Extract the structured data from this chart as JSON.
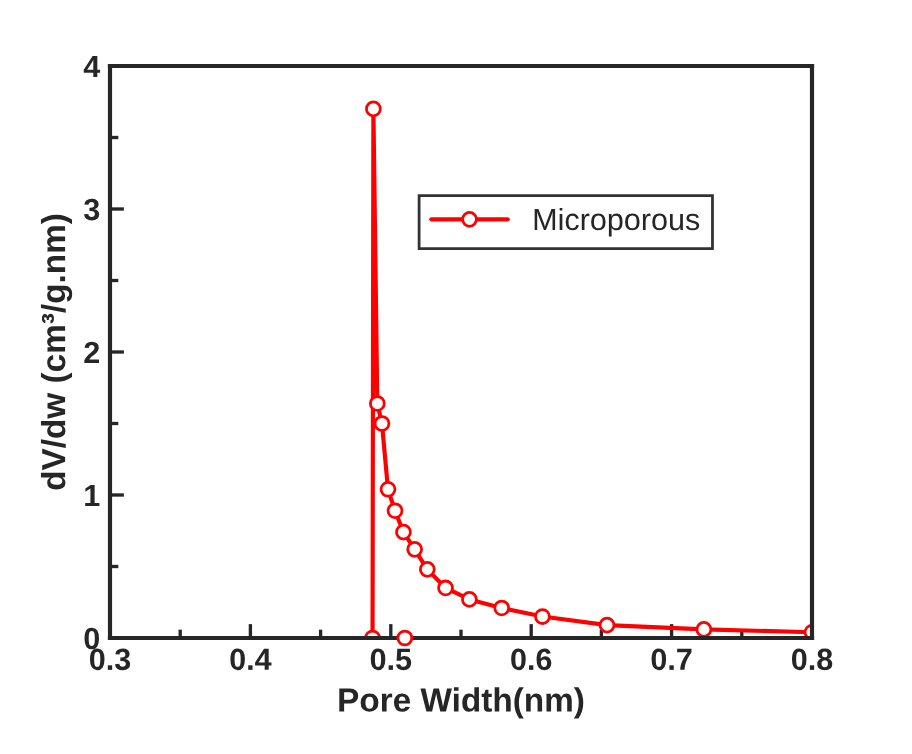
{
  "chart_data": {
    "type": "line",
    "xlabel": "Pore Width(nm)",
    "ylabel": "dV/dw (cm³/g.nm)",
    "xlim": [
      0.3,
      0.8
    ],
    "xticks": [
      0.3,
      0.4,
      0.5,
      0.6,
      0.7,
      0.8
    ],
    "ylim": [
      0,
      4
    ],
    "yticks": [
      0,
      1,
      2,
      3,
      4
    ],
    "grid": false,
    "legend": "top right",
    "marker": "circle",
    "line_style": "solid",
    "series": [
      {
        "name": "Microporous",
        "color": "#ff0000",
        "x": [
          0.487,
          0.4876,
          0.4904,
          0.4937,
          0.498,
          0.503,
          0.509,
          0.517,
          0.526,
          0.539,
          0.556,
          0.579,
          0.608,
          0.654,
          0.723,
          0.8
        ],
        "values": [
          0,
          3.7,
          1.64,
          1.5,
          1.04,
          0.89,
          0.74,
          0.62,
          0.48,
          0.35,
          0.27,
          0.21,
          0.15,
          0.09,
          0.06,
          0.04
        ]
      },
      {
        "type": "scatter",
        "color": "#ff0000",
        "x": [
          0.51
        ],
        "values": [
          0.0
        ]
      }
    ]
  }
}
